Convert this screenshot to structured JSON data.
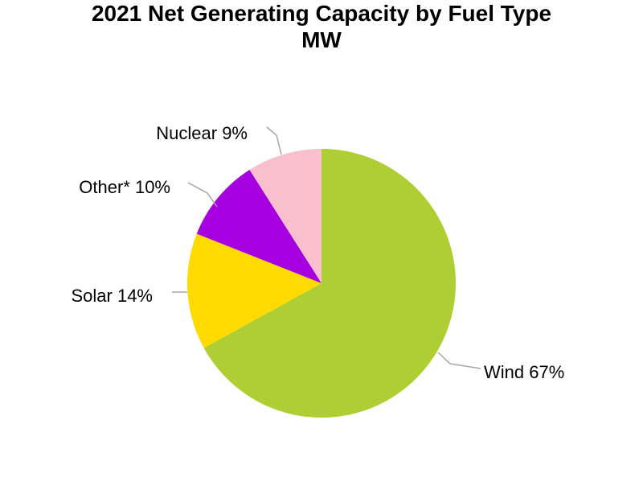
{
  "chart_data": {
    "type": "pie",
    "title": "2021 Net Generating Capacity by Fuel Type",
    "subtitle": "MW",
    "slices": [
      {
        "name": "Wind",
        "percent": 67,
        "label": "Wind 67%",
        "color": "#afce34"
      },
      {
        "name": "Solar",
        "percent": 14,
        "label": "Solar 14%",
        "color": "#ffda00"
      },
      {
        "name": "Other*",
        "percent": 10,
        "label": "Other* 10%",
        "color": "#a600e0"
      },
      {
        "name": "Nuclear",
        "percent": 9,
        "label": "Nuclear 9%",
        "color": "#f9bfcc"
      }
    ],
    "leader_line_color": "#a6a6a6"
  }
}
